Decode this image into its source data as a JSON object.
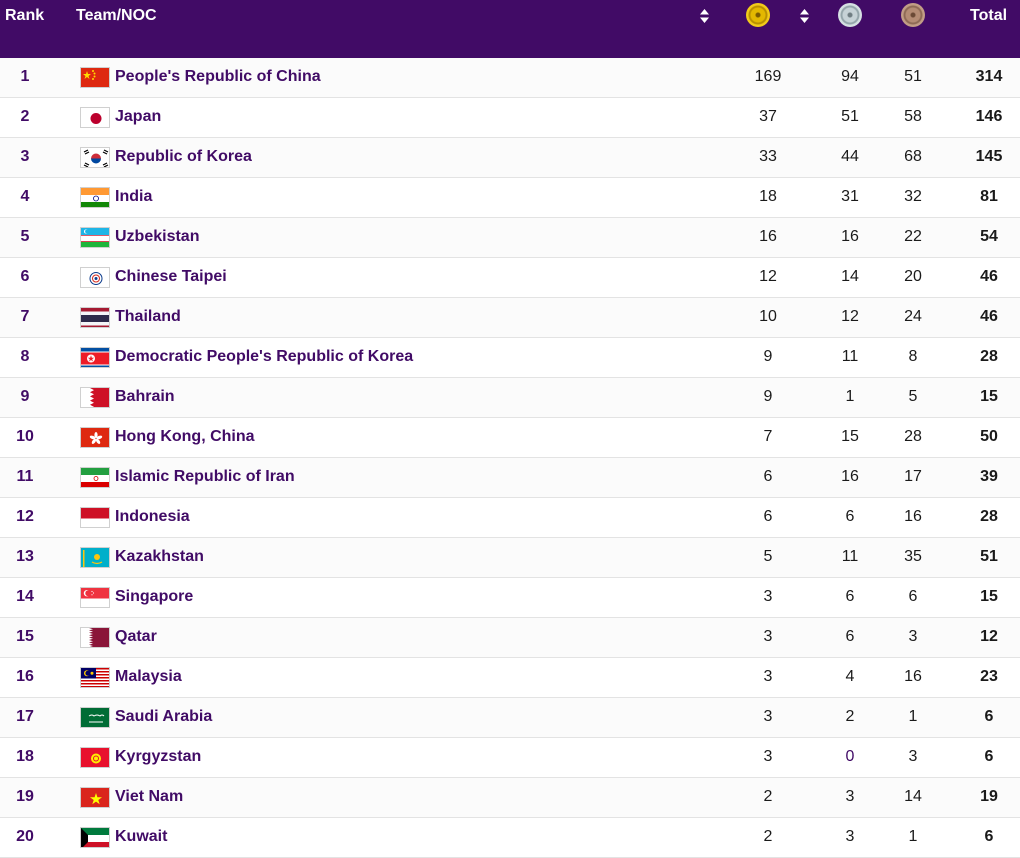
{
  "header": {
    "rank": "Rank",
    "team": "Team/NOC",
    "total": "Total",
    "medal_icons": [
      "gold-medal-icon",
      "silver-medal-icon",
      "bronze-medal-icon"
    ]
  },
  "colors": {
    "header_bg": "#410b66",
    "accent": "#410b66"
  },
  "rows": [
    {
      "rank": "1",
      "team": "People's Republic of China",
      "gold": "169",
      "silver": "94",
      "bronze": "51",
      "total": "314",
      "flag": "china-flag-icon"
    },
    {
      "rank": "2",
      "team": "Japan",
      "gold": "37",
      "silver": "51",
      "bronze": "58",
      "total": "146",
      "flag": "japan-flag-icon"
    },
    {
      "rank": "3",
      "team": "Republic of Korea",
      "gold": "33",
      "silver": "44",
      "bronze": "68",
      "total": "145",
      "flag": "korea-flag-icon"
    },
    {
      "rank": "4",
      "team": "India",
      "gold": "18",
      "silver": "31",
      "bronze": "32",
      "total": "81",
      "flag": "india-flag-icon"
    },
    {
      "rank": "5",
      "team": "Uzbekistan",
      "gold": "16",
      "silver": "16",
      "bronze": "22",
      "total": "54",
      "flag": "uzbekistan-flag-icon"
    },
    {
      "rank": "6",
      "team": "Chinese Taipei",
      "gold": "12",
      "silver": "14",
      "bronze": "20",
      "total": "46",
      "flag": "chinese-taipei-flag-icon"
    },
    {
      "rank": "7",
      "team": "Thailand",
      "gold": "10",
      "silver": "12",
      "bronze": "24",
      "total": "46",
      "flag": "thailand-flag-icon"
    },
    {
      "rank": "8",
      "team": "Democratic People's Republic of Korea",
      "gold": "9",
      "silver": "11",
      "bronze": "8",
      "total": "28",
      "flag": "dpr-korea-flag-icon"
    },
    {
      "rank": "9",
      "team": "Bahrain",
      "gold": "9",
      "silver": "1",
      "bronze": "5",
      "total": "15",
      "flag": "bahrain-flag-icon"
    },
    {
      "rank": "10",
      "team": "Hong Kong, China",
      "gold": "7",
      "silver": "15",
      "bronze": "28",
      "total": "50",
      "flag": "hong-kong-flag-icon"
    },
    {
      "rank": "11",
      "team": "Islamic Republic of Iran",
      "gold": "6",
      "silver": "16",
      "bronze": "17",
      "total": "39",
      "flag": "iran-flag-icon"
    },
    {
      "rank": "12",
      "team": "Indonesia",
      "gold": "6",
      "silver": "6",
      "bronze": "16",
      "total": "28",
      "flag": "indonesia-flag-icon"
    },
    {
      "rank": "13",
      "team": "Kazakhstan",
      "gold": "5",
      "silver": "11",
      "bronze": "35",
      "total": "51",
      "flag": "kazakhstan-flag-icon"
    },
    {
      "rank": "14",
      "team": "Singapore",
      "gold": "3",
      "silver": "6",
      "bronze": "6",
      "total": "15",
      "flag": "singapore-flag-icon"
    },
    {
      "rank": "15",
      "team": "Qatar",
      "gold": "3",
      "silver": "6",
      "bronze": "3",
      "total": "12",
      "flag": "qatar-flag-icon"
    },
    {
      "rank": "16",
      "team": "Malaysia",
      "gold": "3",
      "silver": "4",
      "bronze": "16",
      "total": "23",
      "flag": "malaysia-flag-icon"
    },
    {
      "rank": "17",
      "team": "Saudi Arabia",
      "gold": "3",
      "silver": "2",
      "bronze": "1",
      "total": "6",
      "flag": "saudi-arabia-flag-icon"
    },
    {
      "rank": "18",
      "team": "Kyrgyzstan",
      "gold": "3",
      "silver": "0",
      "bronze": "3",
      "total": "6",
      "flag": "kyrgyzstan-flag-icon"
    },
    {
      "rank": "19",
      "team": "Viet Nam",
      "gold": "2",
      "silver": "3",
      "bronze": "14",
      "total": "19",
      "flag": "viet-nam-flag-icon"
    },
    {
      "rank": "20",
      "team": "Kuwait",
      "gold": "2",
      "silver": "3",
      "bronze": "1",
      "total": "6",
      "flag": "kuwait-flag-icon"
    }
  ]
}
